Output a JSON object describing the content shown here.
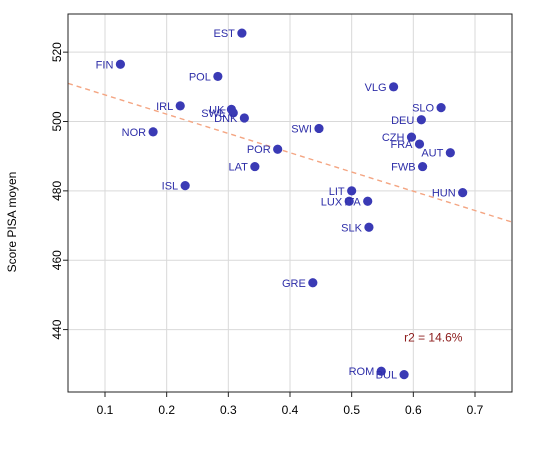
{
  "chart_data": {
    "type": "scatter",
    "title": "",
    "xlabel": "",
    "ylabel": "Score PISA moyen",
    "xlim": [
      0.04,
      0.76
    ],
    "ylim": [
      422,
      531
    ],
    "x_ticks": [
      0.1,
      0.2,
      0.3,
      0.4,
      0.5,
      0.6,
      0.7
    ],
    "y_ticks": [
      440,
      460,
      480,
      500,
      520
    ],
    "grid": true,
    "point_color": "#3a3ab5",
    "label_color": "#2e2ea8",
    "trend_color": "#f4a582",
    "trend_line": {
      "x": [
        0.04,
        0.76
      ],
      "y": [
        511.0,
        471.0
      ]
    },
    "annotation": {
      "text": "r2 = 14.6%",
      "x": 0.585,
      "y": 436.5,
      "color": "#8b1a1a"
    },
    "points": [
      {
        "label": "EST",
        "x": 0.322,
        "y": 525.5,
        "anchor": "end",
        "dx": -7,
        "dy": 0
      },
      {
        "label": "FIN",
        "x": 0.125,
        "y": 516.5,
        "anchor": "end",
        "dx": -7,
        "dy": 0
      },
      {
        "label": "POL",
        "x": 0.283,
        "y": 513.0,
        "anchor": "end",
        "dx": -7,
        "dy": 0
      },
      {
        "label": "VLG",
        "x": 0.568,
        "y": 510.0,
        "anchor": "end",
        "dx": -7,
        "dy": 0
      },
      {
        "label": "IRL",
        "x": 0.222,
        "y": 504.5,
        "anchor": "end",
        "dx": -7,
        "dy": 0
      },
      {
        "label": "UK",
        "x": 0.305,
        "y": 503.5,
        "anchor": "end",
        "dx": -7,
        "dy": 0
      },
      {
        "label": "SWE",
        "x": 0.308,
        "y": 502.5,
        "anchor": "end",
        "dx": -7,
        "dy": 0
      },
      {
        "label": "DNK",
        "x": 0.326,
        "y": 501.0,
        "anchor": "end",
        "dx": -7,
        "dy": 0
      },
      {
        "label": "SLO",
        "x": 0.645,
        "y": 504.0,
        "anchor": "end",
        "dx": -7,
        "dy": 0
      },
      {
        "label": "DEU",
        "x": 0.613,
        "y": 500.5,
        "anchor": "end",
        "dx": -7,
        "dy": 0
      },
      {
        "label": "SWI",
        "x": 0.447,
        "y": 498.0,
        "anchor": "end",
        "dx": -7,
        "dy": 0
      },
      {
        "label": "NOR",
        "x": 0.178,
        "y": 497.0,
        "anchor": "end",
        "dx": -7,
        "dy": 0
      },
      {
        "label": "CZH",
        "x": 0.597,
        "y": 495.5,
        "anchor": "end",
        "dx": -7,
        "dy": 0
      },
      {
        "label": "FRA",
        "x": 0.61,
        "y": 493.5,
        "anchor": "end",
        "dx": -7,
        "dy": 0
      },
      {
        "label": "POR",
        "x": 0.38,
        "y": 492.0,
        "anchor": "end",
        "dx": -7,
        "dy": 0
      },
      {
        "label": "AUT",
        "x": 0.66,
        "y": 491.0,
        "anchor": "end",
        "dx": -7,
        "dy": 0
      },
      {
        "label": "LAT",
        "x": 0.343,
        "y": 487.0,
        "anchor": "end",
        "dx": -7,
        "dy": 0
      },
      {
        "label": "FWB",
        "x": 0.615,
        "y": 487.0,
        "anchor": "end",
        "dx": -7,
        "dy": 0
      },
      {
        "label": "ISL",
        "x": 0.23,
        "y": 481.5,
        "anchor": "end",
        "dx": -7,
        "dy": 0
      },
      {
        "label": "LIT",
        "x": 0.5,
        "y": 480.0,
        "anchor": "end",
        "dx": -7,
        "dy": 0
      },
      {
        "label": "HUN",
        "x": 0.68,
        "y": 479.5,
        "anchor": "end",
        "dx": -7,
        "dy": 0
      },
      {
        "label": "LUX",
        "x": 0.496,
        "y": 477.0,
        "anchor": "end",
        "dx": -7,
        "dy": 0
      },
      {
        "label": "ITA",
        "x": 0.526,
        "y": 477.0,
        "anchor": "end",
        "dx": -7,
        "dy": 0
      },
      {
        "label": "SLK",
        "x": 0.528,
        "y": 469.5,
        "anchor": "end",
        "dx": -7,
        "dy": 0
      },
      {
        "label": "GRE",
        "x": 0.437,
        "y": 453.5,
        "anchor": "end",
        "dx": -7,
        "dy": 0
      },
      {
        "label": "ROM",
        "x": 0.548,
        "y": 428.0,
        "anchor": "end",
        "dx": -7,
        "dy": 0
      },
      {
        "label": "BUL",
        "x": 0.585,
        "y": 427.0,
        "anchor": "end",
        "dx": -7,
        "dy": 0
      }
    ]
  }
}
